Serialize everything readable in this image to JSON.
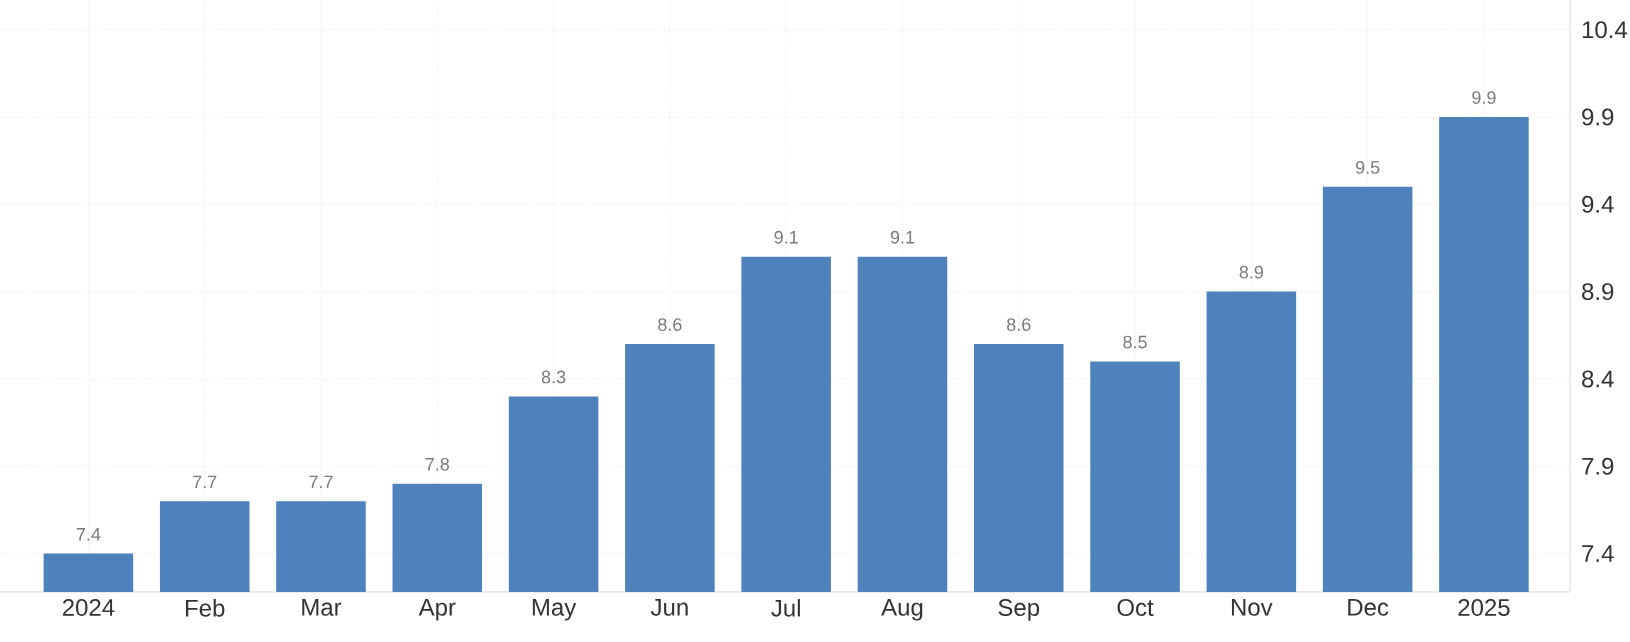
{
  "chart_data": {
    "type": "bar",
    "categories": [
      "2024",
      "Feb",
      "Mar",
      "Apr",
      "May",
      "Jun",
      "Jul",
      "Aug",
      "Sep",
      "Oct",
      "Nov",
      "Dec",
      "2025"
    ],
    "values": [
      7.4,
      7.7,
      7.7,
      7.8,
      8.3,
      8.6,
      9.1,
      9.1,
      8.6,
      8.5,
      8.9,
      9.5,
      9.9
    ],
    "color": "#4f81bd",
    "ylim": [
      7.18,
      10.57
    ],
    "yticks": [
      7.4,
      7.9,
      8.4,
      8.9,
      9.4,
      9.9,
      10.4
    ],
    "grid": true,
    "data_labels": true
  }
}
